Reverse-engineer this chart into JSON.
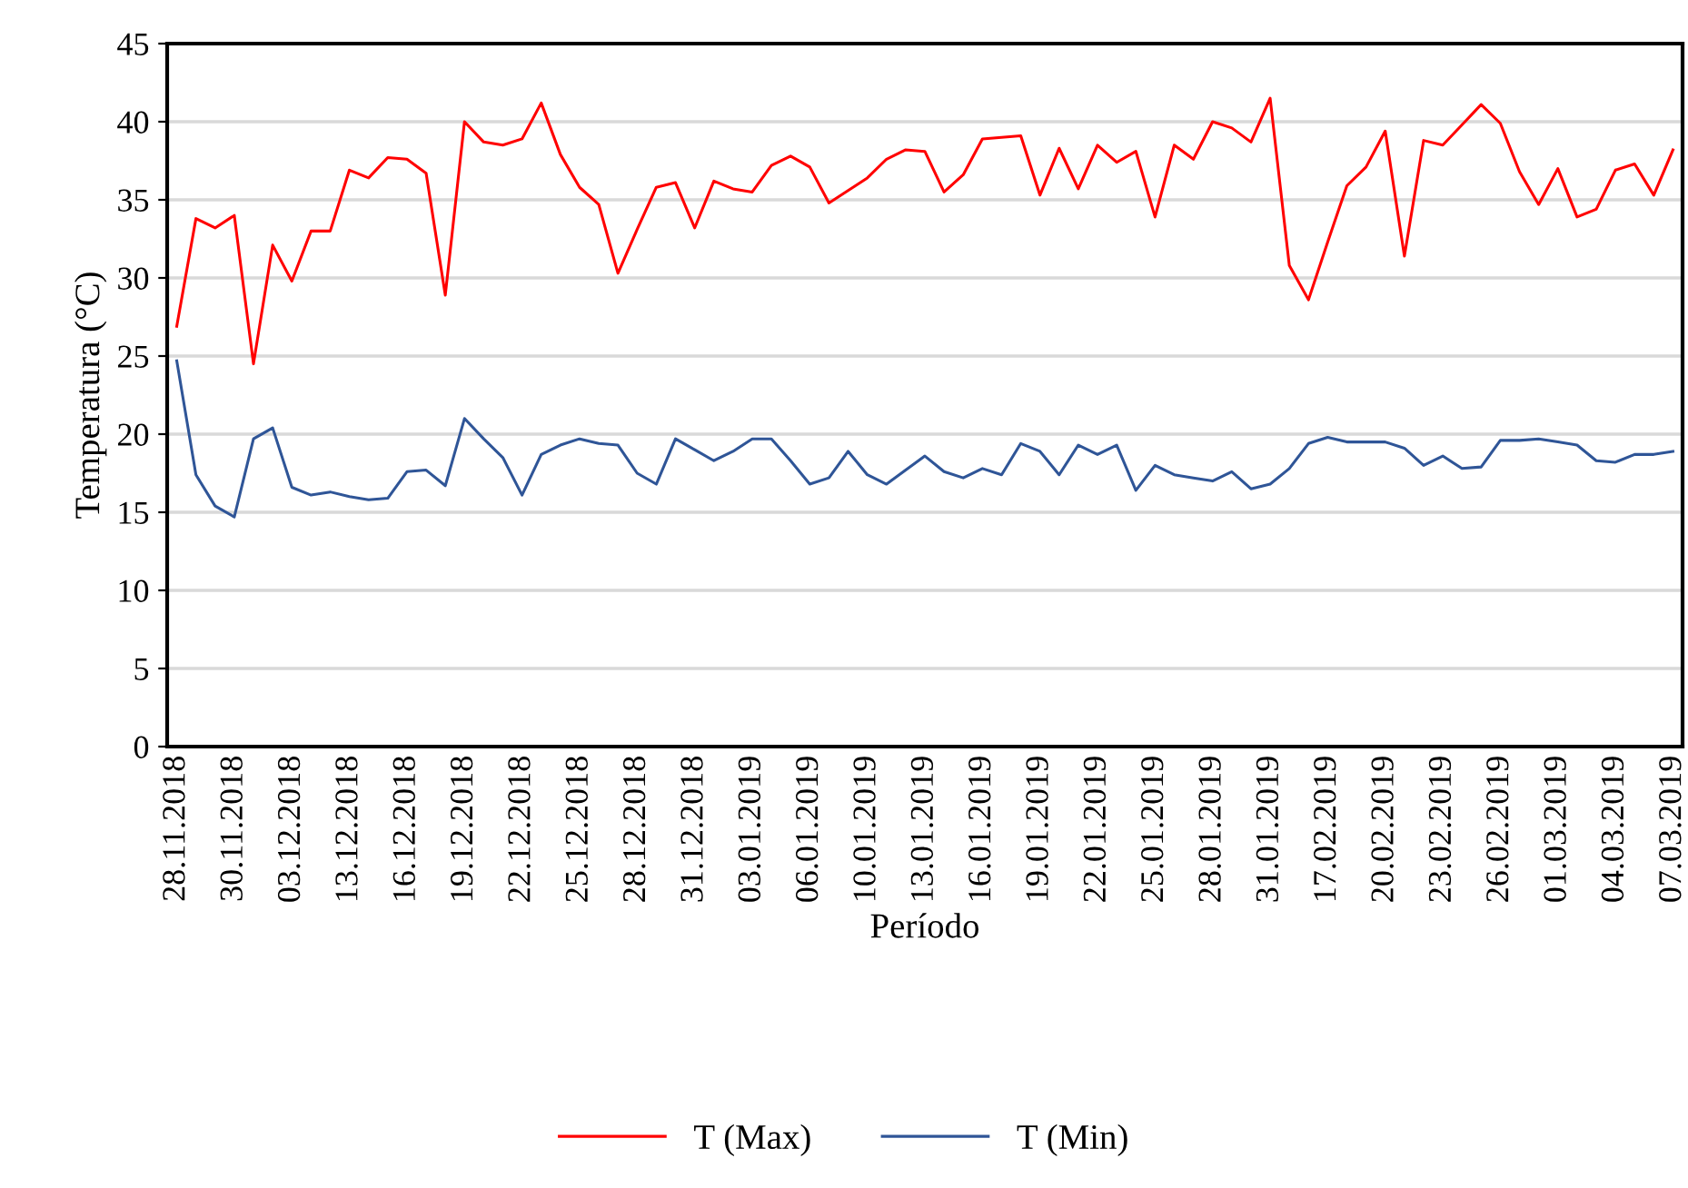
{
  "chart_data": {
    "type": "line",
    "xlabel": "Período",
    "ylabel": "Temperatura (°C)",
    "categories": [
      "28.11.2018",
      null,
      null,
      "30.11.2018",
      null,
      null,
      "03.12.2018",
      null,
      null,
      "13.12.2018",
      null,
      null,
      "16.12.2018",
      null,
      null,
      "19.12.2018",
      null,
      null,
      "22.12.2018",
      null,
      null,
      "25.12.2018",
      null,
      null,
      "28.12.2018",
      null,
      null,
      "31.12.2018",
      null,
      null,
      "03.01.2019",
      null,
      null,
      "06.01.2019",
      null,
      null,
      "10.01.2019",
      null,
      null,
      "13.01.2019",
      null,
      null,
      "16.01.2019",
      null,
      null,
      "19.01.2019",
      null,
      null,
      "22.01.2019",
      null,
      null,
      "25.01.2019",
      null,
      null,
      "28.01.2019",
      null,
      null,
      "31.01.2019",
      null,
      null,
      "17.02.2019",
      null,
      null,
      "20.02.2019",
      null,
      null,
      "23.02.2019",
      null,
      null,
      "26.02.2019",
      null,
      null,
      "01.03.2019",
      null,
      null,
      "04.03.2019",
      null,
      null,
      "07.03.2019"
    ],
    "series": [
      {
        "name": "T (Max)",
        "color": "#ff0000",
        "values": [
          26.9,
          33.8,
          33.2,
          34.0,
          24.5,
          32.1,
          29.8,
          33.0,
          33.0,
          36.9,
          36.4,
          37.7,
          37.6,
          36.7,
          28.9,
          40.0,
          38.7,
          38.5,
          38.9,
          41.2,
          37.9,
          35.8,
          34.7,
          30.3,
          33.1,
          35.8,
          36.1,
          33.2,
          36.2,
          35.7,
          35.5,
          37.2,
          37.8,
          37.1,
          34.8,
          35.6,
          36.4,
          37.6,
          38.2,
          38.1,
          35.5,
          36.6,
          38.9,
          39.0,
          39.1,
          35.3,
          38.3,
          35.7,
          38.5,
          37.4,
          38.1,
          33.9,
          38.5,
          37.6,
          40.0,
          39.6,
          38.7,
          41.5,
          30.8,
          28.6,
          32.3,
          35.9,
          37.1,
          39.4,
          31.4,
          38.8,
          38.5,
          39.8,
          41.1,
          39.9,
          36.8,
          34.7,
          37.0,
          33.9,
          34.4,
          36.9,
          37.3,
          35.3,
          38.2
        ]
      },
      {
        "name": "T (Min)",
        "color": "#2f5597",
        "values": [
          24.7,
          17.4,
          15.4,
          14.7,
          19.7,
          20.4,
          16.6,
          16.1,
          16.3,
          16.0,
          15.8,
          15.9,
          17.6,
          17.7,
          16.7,
          21.0,
          19.7,
          18.5,
          16.1,
          18.7,
          19.3,
          19.7,
          19.4,
          19.3,
          17.5,
          16.8,
          19.7,
          19.0,
          18.3,
          18.9,
          19.7,
          19.7,
          18.3,
          16.8,
          17.2,
          18.9,
          17.4,
          16.8,
          17.7,
          18.6,
          17.6,
          17.2,
          17.8,
          17.4,
          19.4,
          18.9,
          17.4,
          19.3,
          18.7,
          19.3,
          16.4,
          18.0,
          17.4,
          17.2,
          17.0,
          17.6,
          16.5,
          16.8,
          17.8,
          19.4,
          19.8,
          19.5,
          19.5,
          19.5,
          19.1,
          18.0,
          18.6,
          17.8,
          17.9,
          19.6,
          19.6,
          19.7,
          19.5,
          19.3,
          18.3,
          18.2,
          18.7,
          18.7,
          18.9
        ]
      }
    ],
    "ylim": [
      0,
      45
    ],
    "yticks": [
      0,
      5,
      10,
      15,
      20,
      25,
      30,
      35,
      40,
      45
    ],
    "grid": "y",
    "legend": "bottom",
    "marker": "none",
    "line_style": "solid"
  }
}
